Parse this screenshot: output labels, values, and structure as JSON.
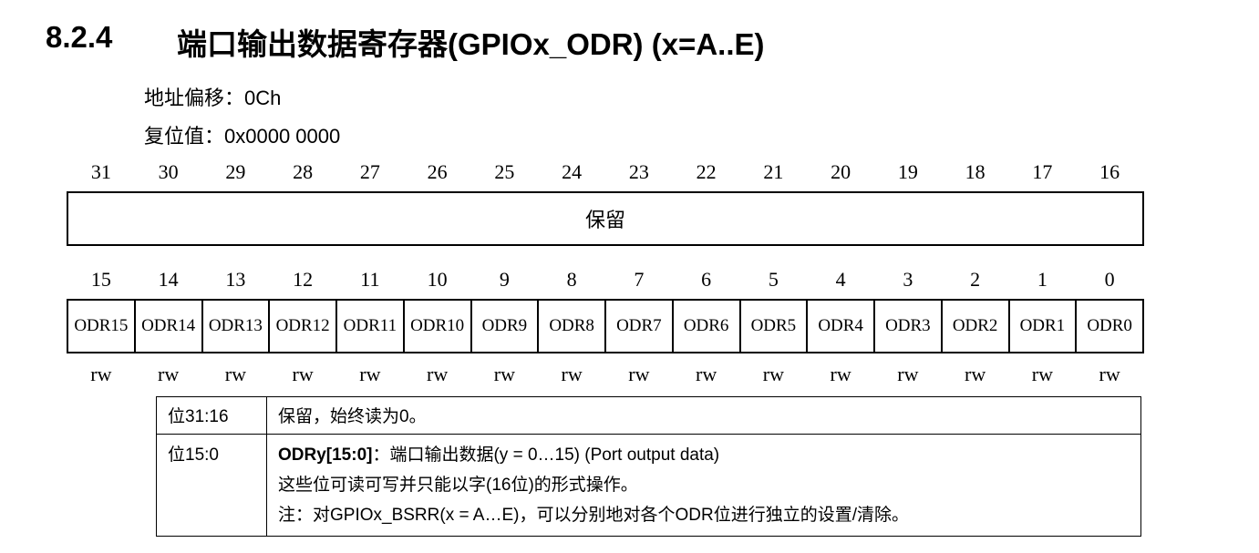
{
  "section": {
    "number": "8.2.4",
    "title": "端口输出数据寄存器(GPIOx_ODR) (x=A..E)"
  },
  "meta": {
    "offset_label": "地址偏移：",
    "offset_value": "0Ch",
    "reset_label": "复位值：",
    "reset_value": "0x0000 0000"
  },
  "register": {
    "upper_bit_numbers": [
      "31",
      "30",
      "29",
      "28",
      "27",
      "26",
      "25",
      "24",
      "23",
      "22",
      "21",
      "20",
      "19",
      "18",
      "17",
      "16"
    ],
    "reserved_label": "保留",
    "lower_bit_numbers": [
      "15",
      "14",
      "13",
      "12",
      "11",
      "10",
      "9",
      "8",
      "7",
      "6",
      "5",
      "4",
      "3",
      "2",
      "1",
      "0"
    ],
    "fields": [
      "ODR15",
      "ODR14",
      "ODR13",
      "ODR12",
      "ODR11",
      "ODR10",
      "ODR9",
      "ODR8",
      "ODR7",
      "ODR6",
      "ODR5",
      "ODR4",
      "ODR3",
      "ODR2",
      "ODR1",
      "ODR0"
    ],
    "access": [
      "rw",
      "rw",
      "rw",
      "rw",
      "rw",
      "rw",
      "rw",
      "rw",
      "rw",
      "rw",
      "rw",
      "rw",
      "rw",
      "rw",
      "rw",
      "rw"
    ]
  },
  "description": {
    "row1": {
      "bits": "位31:16",
      "text": "保留，始终读为0。"
    },
    "row2": {
      "bits": "位15:0",
      "field_name": "ODRy[15:0]",
      "field_desc": "：端口输出数据(y = 0…15) (Port output data)",
      "line2": "这些位可读可写并只能以字(16位)的形式操作。",
      "line3": "注：对GPIOx_BSRR(x = A…E)，可以分别地对各个ODR位进行独立的设置/清除。"
    }
  }
}
